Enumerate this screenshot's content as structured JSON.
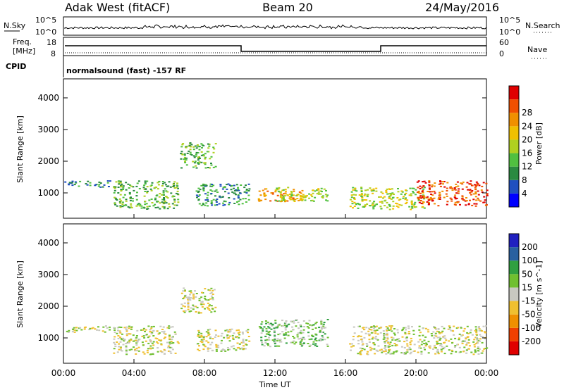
{
  "header": {
    "title_left": "Adak West (fitACF)",
    "title_center": "Beam 20",
    "title_right": "24/May/2016"
  },
  "nsky_panel": {
    "label_left": "N.Sky",
    "label_right": "N.Search",
    "y_top_label": "10^5",
    "y_bottom_label": "10^0",
    "yr_top_label": "10^5",
    "yr_bottom_label": "10^0"
  },
  "freq_panel": {
    "label_left_1": "Freq.",
    "label_left_2": "[MHz]",
    "label_right": "Nave",
    "y_top": "18",
    "y_bottom": "8",
    "yr_top": "60",
    "yr_bottom": "0"
  },
  "cpid": {
    "label": "CPID",
    "text": "normalsound (fast) -157 RF"
  },
  "chart_data": [
    {
      "type": "heatmap",
      "name": "power",
      "ylabel": "Slant Range [km]",
      "ylim": [
        200,
        4600
      ],
      "yticks": [
        "1000",
        "2000",
        "3000",
        "4000"
      ],
      "xlim": [
        0,
        24
      ],
      "colorbar_label": "Power [dB]",
      "colorbar_ticks": [
        "4",
        "8",
        "12",
        "16",
        "20",
        "24",
        "28"
      ],
      "colorbar_colors": [
        "#0000ff",
        "#2050c0",
        "#2a8a40",
        "#50c040",
        "#b0d020",
        "#f0c000",
        "#f09000",
        "#f05000",
        "#e00000"
      ],
      "regions": [
        {
          "t0": 0.0,
          "t1": 2.6,
          "r0": 1200,
          "r1": 1400,
          "level": 2
        },
        {
          "t0": 2.8,
          "t1": 6.5,
          "r0": 500,
          "r1": 1400,
          "level": 3
        },
        {
          "t0": 6.6,
          "t1": 8.6,
          "r0": 1800,
          "r1": 2600,
          "level": 3
        },
        {
          "t0": 7.5,
          "t1": 10.5,
          "r0": 600,
          "r1": 1300,
          "level": 2
        },
        {
          "t0": 11.0,
          "t1": 13.5,
          "r0": 750,
          "r1": 1150,
          "level": 6
        },
        {
          "t0": 12.0,
          "t1": 15.0,
          "r0": 750,
          "r1": 1200,
          "level": 4
        },
        {
          "t0": 16.2,
          "t1": 20.5,
          "r0": 500,
          "r1": 1200,
          "level": 4
        },
        {
          "t0": 20.0,
          "t1": 24.0,
          "r0": 600,
          "r1": 1400,
          "level": 7
        }
      ]
    },
    {
      "type": "heatmap",
      "name": "velocity",
      "ylabel": "Slant Range [km]",
      "ylim": [
        200,
        4600
      ],
      "yticks": [
        "1000",
        "2000",
        "3000",
        "4000"
      ],
      "xlim": [
        0,
        24
      ],
      "xticks": [
        "00:00",
        "04:00",
        "08:00",
        "12:00",
        "16:00",
        "20:00",
        "00:00"
      ],
      "xlabel": "Time UT",
      "colorbar_label": "Velocity [m s^-1]",
      "colorbar_ticks": [
        "200",
        "100",
        "50",
        "15",
        "-15",
        "-50",
        "-100",
        "-200"
      ],
      "colorbar_colors": [
        "#2020c0",
        "#2860a0",
        "#30a040",
        "#70c030",
        "#c8c8c0",
        "#f0c030",
        "#f09000",
        "#f04000",
        "#e00000"
      ],
      "regions": [
        {
          "t0": 0.0,
          "t1": 2.6,
          "r0": 1200,
          "r1": 1400,
          "level": 4
        },
        {
          "t0": 2.8,
          "t1": 6.5,
          "r0": 500,
          "r1": 1400,
          "level": 4
        },
        {
          "t0": 6.6,
          "t1": 8.6,
          "r0": 1800,
          "r1": 2600,
          "level": 4
        },
        {
          "t0": 7.5,
          "t1": 10.5,
          "r0": 600,
          "r1": 1300,
          "level": 4
        },
        {
          "t0": 11.0,
          "t1": 15.0,
          "r0": 750,
          "r1": 1600,
          "level": 5
        },
        {
          "t0": 16.2,
          "t1": 24.0,
          "r0": 500,
          "r1": 1400,
          "level": 4
        }
      ]
    }
  ]
}
